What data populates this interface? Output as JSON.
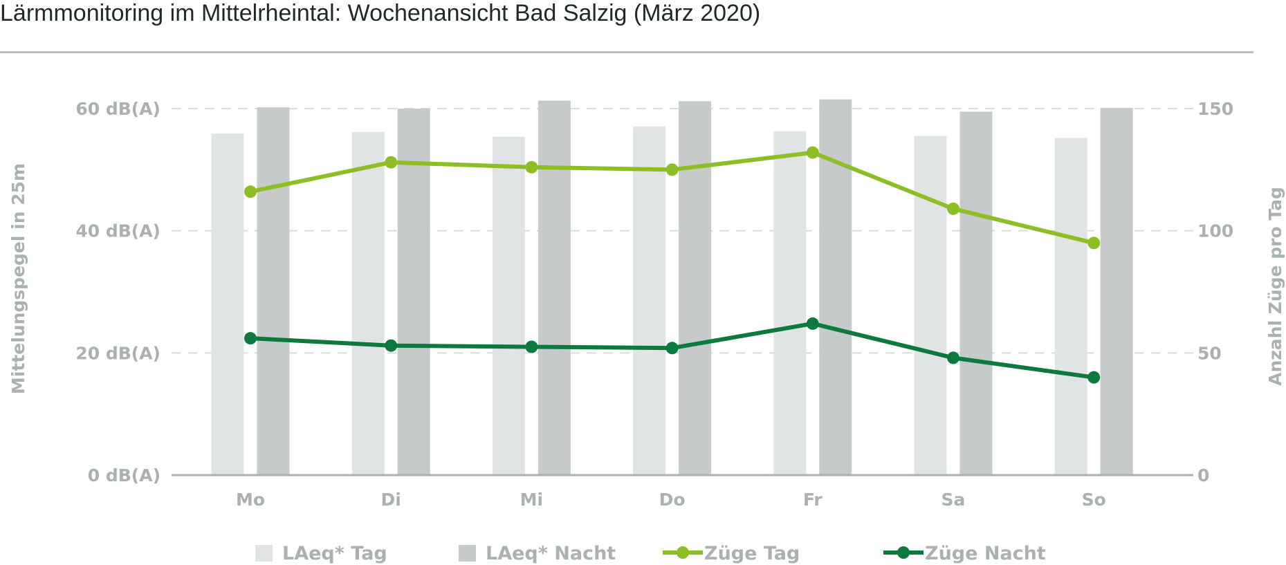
{
  "title": "Lärmmonitoring im Mittelrheintal: Wochenansicht Bad Salzig (März 2020)",
  "chart_data": {
    "type": "bar",
    "categories": [
      "Mo",
      "Di",
      "Mi",
      "Do",
      "Fr",
      "Sa",
      "So"
    ],
    "y_left": {
      "label": "Mittelungspegel in 25m",
      "range": [
        0,
        60
      ],
      "ticks": [
        0,
        20,
        40,
        60
      ],
      "tick_labels": [
        "0 dB(A)",
        "20 dB(A)",
        "40 dB(A)",
        "60 dB(A)"
      ]
    },
    "y_right": {
      "label": "Anzahl Züge pro Tag",
      "range": [
        0,
        150
      ],
      "ticks": [
        0,
        50,
        100,
        150
      ],
      "tick_labels": [
        "0",
        "50",
        "100",
        "150"
      ]
    },
    "grid": true,
    "legend_position": "bottom",
    "series": [
      {
        "name": "LAeq* Tag",
        "kind": "bar",
        "axis": "left",
        "color": "#e1e4e5",
        "values": [
          55.9,
          56.2,
          55.4,
          57.1,
          56.3,
          55.5,
          55.2
        ]
      },
      {
        "name": "LAeq* Nacht",
        "kind": "bar",
        "axis": "left",
        "color": "#c6cacb",
        "values": [
          60.2,
          60.0,
          61.3,
          61.2,
          61.5,
          59.5,
          60.1
        ]
      },
      {
        "name": "Züge Tag",
        "kind": "line",
        "axis": "right",
        "color": "#8cbf26",
        "values": [
          116,
          128,
          126,
          125,
          132,
          109,
          95
        ]
      },
      {
        "name": "Züge Nacht",
        "kind": "line",
        "axis": "right",
        "color": "#0c7a3c",
        "values": [
          56,
          53,
          52.5,
          52,
          62,
          48,
          40
        ]
      }
    ]
  }
}
